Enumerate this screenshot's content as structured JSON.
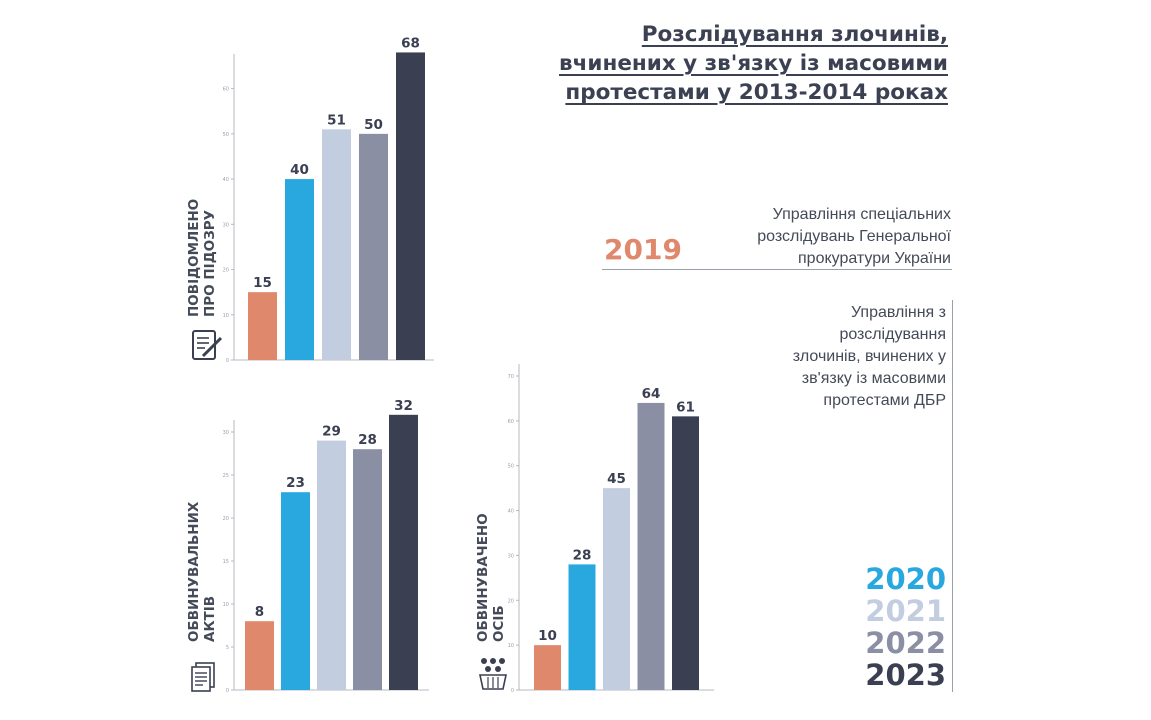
{
  "title": {
    "line1": "Розслідування злочинів,",
    "line2": "вчинених у зв'язку із масовими",
    "line3": "протестами у 2013-2014 роках"
  },
  "org_2019": {
    "year": "2019",
    "line1": "Управління спеціальних",
    "line2": "розслідувань Генеральної",
    "line3": "прокуратури України"
  },
  "org_dbr": {
    "line1": "Управління з",
    "line2": "розслідування",
    "line3": "злочинів, вчинених у",
    "line4": "зв'язку із  масовими",
    "line5": "протестами ДБР"
  },
  "legend": [
    "2020",
    "2021",
    "2022",
    "2023"
  ],
  "colors": {
    "2019": "#e0886c",
    "2020": "#29a8e0",
    "2021": "#c2cde0",
    "2022": "#8a8fa3",
    "2023": "#3a3f51",
    "axis": "#b5b9c2",
    "text": "#3a3f51"
  },
  "chart_data": [
    {
      "type": "bar",
      "label_line1": "ПОВІДОМЛЕНО",
      "label_line2": "ПРО ПІДОЗРУ",
      "icon": "document-pen-icon",
      "categories": [
        "2019",
        "2020",
        "2021",
        "2022",
        "2023"
      ],
      "values": [
        15,
        40,
        51,
        50,
        68
      ],
      "ylim": [
        0,
        65
      ],
      "yticks": [
        "0",
        "10",
        "20",
        "30",
        "40",
        "50",
        "60"
      ]
    },
    {
      "type": "bar",
      "label_line1": "ОБВИНУВАЛЬНИХ",
      "label_line2": "АКТІВ",
      "icon": "document-stack-icon",
      "categories": [
        "2019",
        "2020",
        "2021",
        "2022",
        "2023"
      ],
      "values": [
        8,
        23,
        29,
        28,
        32
      ],
      "ylim": [
        0,
        30
      ],
      "yticks": [
        "0",
        "5",
        "10",
        "15",
        "20",
        "25",
        "30"
      ]
    },
    {
      "type": "bar",
      "label_line1": "ОБВИНУВАЧЕНО",
      "label_line2": "ОСІБ",
      "icon": "people-group-icon",
      "categories": [
        "2019",
        "2020",
        "2021",
        "2022",
        "2023"
      ],
      "values": [
        10,
        28,
        45,
        64,
        61
      ],
      "ylim": [
        0,
        70
      ],
      "yticks": [
        "0",
        "10",
        "20",
        "30",
        "40",
        "50",
        "60",
        "70"
      ]
    }
  ]
}
